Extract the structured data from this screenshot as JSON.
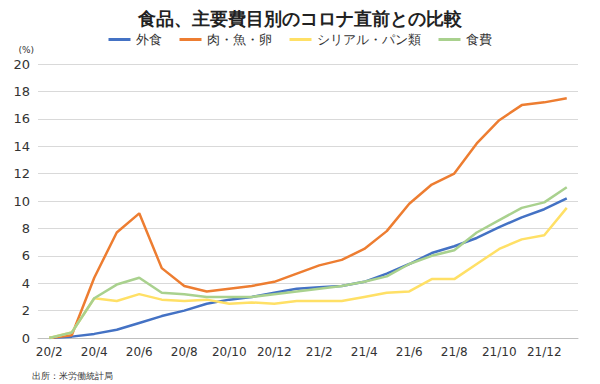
{
  "chart_data": {
    "type": "line",
    "title": "食品、主要費目別のコロナ直前との比較",
    "y_label": "(%)",
    "annotations": [
      "出所：米労働統計局"
    ],
    "categories": [
      "20/2",
      null,
      "20/4",
      null,
      "20/6",
      null,
      "20/8",
      null,
      "20/10",
      null,
      "20/12",
      null,
      "21/2",
      null,
      "21/4",
      null,
      "21/6",
      null,
      "21/8",
      null,
      "21/10",
      null,
      "21/12",
      null
    ],
    "series": [
      {
        "name": "外食",
        "color": "#4472c4",
        "values": [
          0,
          0.1,
          0.3,
          0.6,
          1.1,
          1.6,
          2.0,
          2.5,
          2.8,
          3.0,
          3.3,
          3.6,
          3.7,
          3.8,
          4.1,
          4.7,
          5.4,
          6.2,
          6.7,
          7.3,
          8.1,
          8.8,
          9.4,
          10.2
        ]
      },
      {
        "name": "肉・魚・卵",
        "color": "#ed7d31",
        "values": [
          0,
          0.2,
          4.4,
          7.7,
          9.1,
          5.1,
          3.8,
          3.4,
          3.6,
          3.8,
          4.1,
          4.7,
          5.3,
          5.7,
          6.5,
          7.8,
          9.8,
          11.2,
          12.0,
          14.2,
          15.9,
          17.0,
          17.2,
          17.5
        ]
      },
      {
        "name": "シリアル・パン類",
        "color": "#ffe066",
        "values": [
          0,
          0.4,
          2.9,
          2.7,
          3.2,
          2.8,
          2.7,
          2.8,
          2.5,
          2.6,
          2.5,
          2.7,
          2.7,
          2.7,
          3.0,
          3.3,
          3.4,
          4.3,
          4.3,
          5.4,
          6.5,
          7.2,
          7.5,
          9.5
        ]
      },
      {
        "name": "食費",
        "color": "#a9d18e",
        "values": [
          0,
          0.4,
          2.9,
          3.9,
          4.4,
          3.3,
          3.2,
          3.0,
          3.0,
          3.0,
          3.2,
          3.4,
          3.6,
          3.8,
          4.1,
          4.5,
          5.4,
          6.0,
          6.4,
          7.7,
          8.6,
          9.5,
          9.9,
          11.0
        ]
      }
    ],
    "ylim": [
      0,
      20
    ],
    "yticks": [
      0,
      2,
      4,
      6,
      8,
      10,
      12,
      14,
      16,
      18,
      20
    ],
    "grid": true,
    "legend": "top",
    "marker": "none",
    "line_style": "solid",
    "data_labels": false
  }
}
